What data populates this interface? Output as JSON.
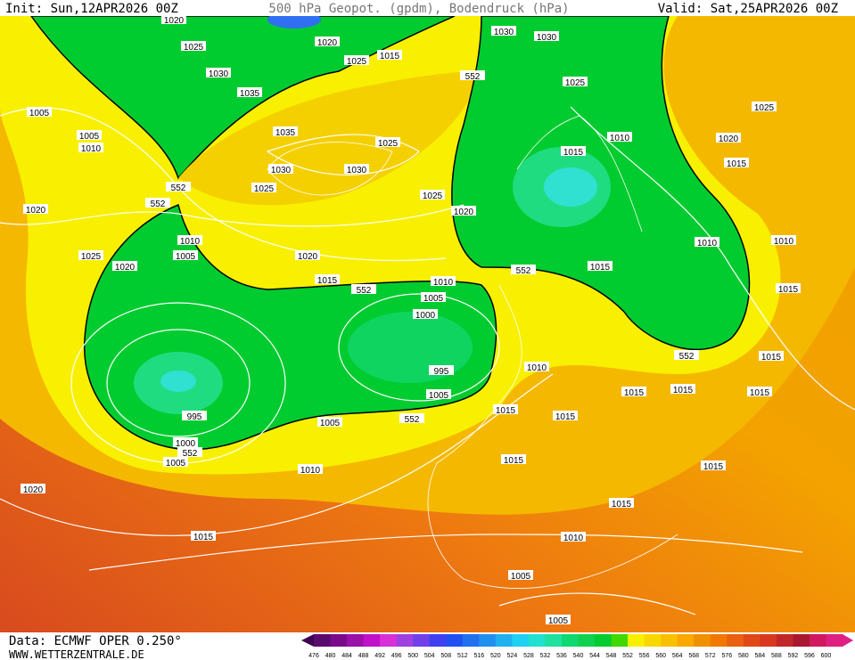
{
  "header": {
    "init": "Init: Sun,12APR2026 00Z",
    "title": "500 hPa Geopot. (gpdm), Bodendruck (hPa)",
    "valid": "Valid: Sat,25APR2026 00Z"
  },
  "footer": {
    "data": "Data: ECMWF OPER 0.250°",
    "website": "WWW.WETTERZENTRALE.DE"
  },
  "colorbar": {
    "labels": [
      476,
      480,
      484,
      488,
      492,
      496,
      500,
      504,
      508,
      512,
      516,
      520,
      524,
      528,
      532,
      536,
      540,
      544,
      548,
      552,
      556,
      560,
      564,
      568,
      572,
      576,
      580,
      584,
      588,
      592,
      596,
      600
    ]
  },
  "isobar_labels": [
    "1020",
    "1025",
    "1030",
    "1035",
    "1020",
    "1025",
    "1015",
    "1030",
    "1030",
    "552",
    "1025",
    "1005",
    "1005",
    "1010",
    "1035",
    "1025",
    "1030",
    "1030",
    "1025",
    "552",
    "552",
    "1025",
    "1020",
    "1015",
    "1010",
    "1025",
    "1020",
    "1015",
    "1020",
    "1010",
    "1005",
    "1025",
    "1020",
    "1020",
    "1015",
    "552",
    "1010",
    "1005",
    "1000",
    "552",
    "1015",
    "1010",
    "1010",
    "1015",
    "995",
    "1005",
    "1010",
    "552",
    "1015",
    "1015",
    "1015",
    "1015",
    "995",
    "1005",
    "552",
    "1015",
    "1015",
    "1000",
    "1005",
    "552",
    "1010",
    "1015",
    "1015",
    "1020",
    "1015",
    "1015",
    "1010",
    "1005",
    "1005"
  ]
}
